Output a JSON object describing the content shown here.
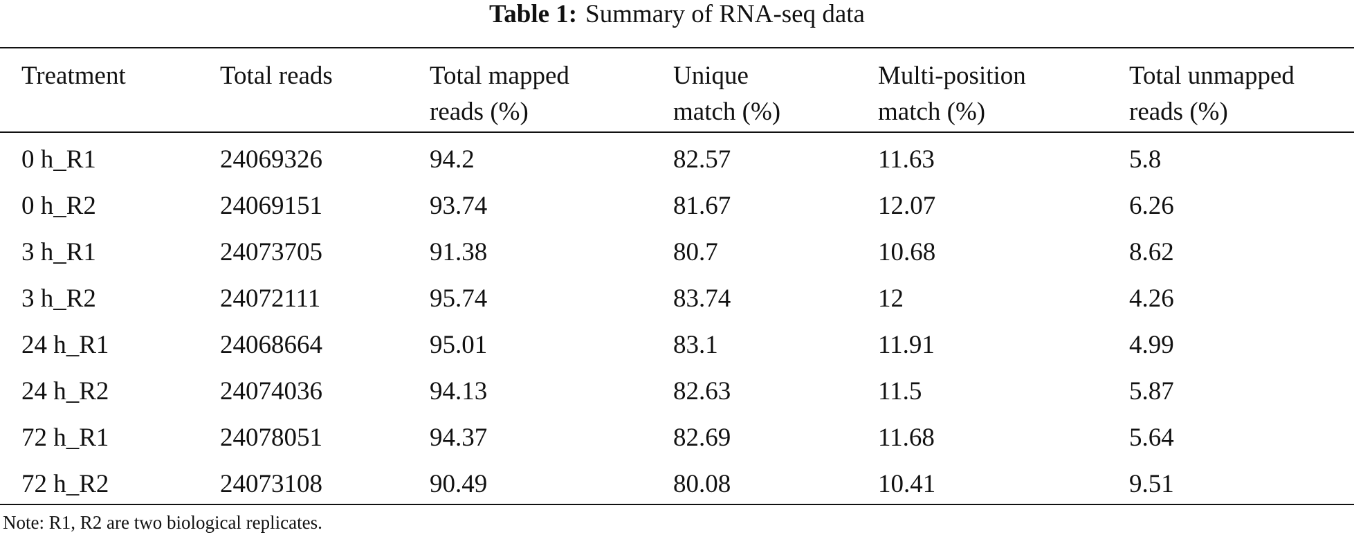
{
  "title": {
    "label": "Table 1:",
    "text": "Summary of RNA-seq data"
  },
  "table": {
    "header": [
      "Treatment",
      "Total reads",
      "Total mapped reads (%)",
      "Unique match (%)",
      "Multi-position match (%)",
      "Total unmapped reads (%)"
    ],
    "rows": [
      [
        "0 h_R1",
        "24069326",
        "94.2",
        "82.57",
        "11.63",
        "5.8"
      ],
      [
        "0 h_R2",
        "24069151",
        "93.74",
        "81.67",
        "12.07",
        "6.26"
      ],
      [
        "3 h_R1",
        "24073705",
        "91.38",
        "80.7",
        "10.68",
        "8.62"
      ],
      [
        "3 h_R2",
        "24072111",
        "95.74",
        "83.74",
        "12",
        "4.26"
      ],
      [
        "24 h_R1",
        "24068664",
        "95.01",
        "83.1",
        "11.91",
        "4.99"
      ],
      [
        "24 h_R2",
        "24074036",
        "94.13",
        "82.63",
        "11.5",
        "5.87"
      ],
      [
        "72 h_R1",
        "24078051",
        "94.37",
        "82.69",
        "11.68",
        "5.64"
      ],
      [
        "72 h_R2",
        "24073108",
        "90.49",
        "80.08",
        "10.41",
        "9.51"
      ]
    ]
  },
  "note": "Note: R1, R2 are two biological replicates."
}
